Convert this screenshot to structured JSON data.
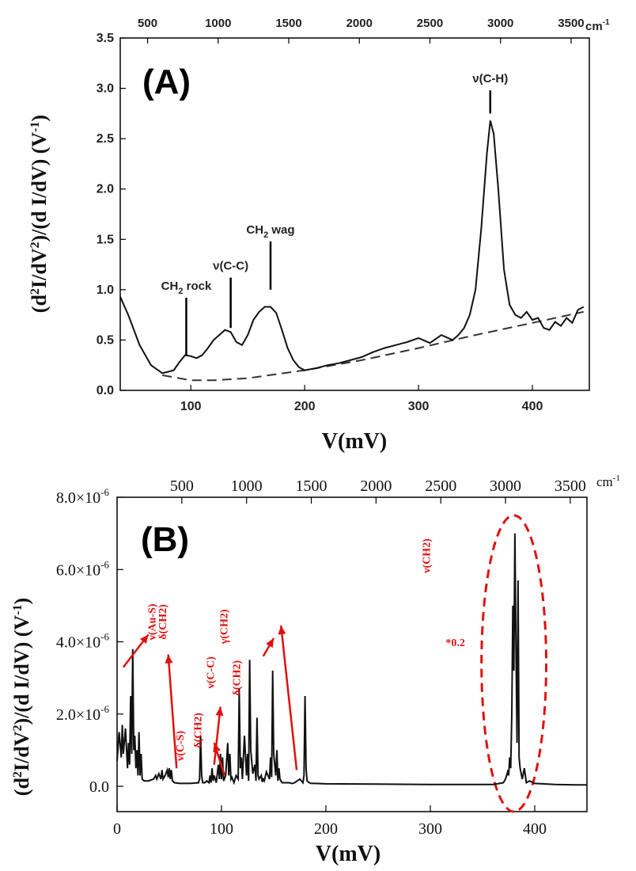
{
  "chart_data": [
    {
      "type": "line",
      "panel_label": "(A)",
      "xlabel": "V(mV)",
      "ylabel": "(d²I/dV²)/(d I/dV) (V⁻¹)",
      "ylabel_parts": {
        "a": "(d",
        "b": "2",
        "c": "I/dV",
        "d": "2",
        "e": ")/(d I/dV) (V",
        "f": "-1",
        "g": ")"
      },
      "xlim": [
        38,
        450
      ],
      "ylim": [
        0,
        3.5
      ],
      "x_ticks": [
        "100",
        "200",
        "300",
        "400"
      ],
      "x_tick_values": [
        100,
        200,
        300,
        400
      ],
      "y_ticks": [
        "0.0",
        "0.5",
        "1.0",
        "1.5",
        "2.0",
        "2.5",
        "3.0",
        "3.5"
      ],
      "y_tick_values": [
        0,
        0.5,
        1.0,
        1.5,
        2.0,
        2.5,
        3.0,
        3.5
      ],
      "top_axis_ticks": [
        "500",
        "1000",
        "1500",
        "2000",
        "2500",
        "3000",
        "3500"
      ],
      "top_axis_values": [
        500,
        1000,
        1500,
        2000,
        2500,
        3000,
        3500
      ],
      "top_axis_unit": "cm",
      "top_axis_unit_exp": "-1",
      "series": [
        {
          "name": "spectrum",
          "style": "solid",
          "x": [
            38,
            45,
            55,
            65,
            75,
            85,
            90,
            95,
            100,
            105,
            110,
            115,
            120,
            125,
            130,
            135,
            140,
            145,
            150,
            155,
            160,
            165,
            170,
            175,
            180,
            185,
            190,
            195,
            200,
            210,
            220,
            230,
            240,
            250,
            260,
            270,
            280,
            290,
            300,
            310,
            320,
            330,
            335,
            340,
            345,
            350,
            355,
            360,
            363,
            366,
            370,
            375,
            380,
            385,
            390,
            395,
            400,
            405,
            410,
            415,
            420,
            425,
            430,
            435,
            440,
            445
          ],
          "y": [
            0.93,
            0.75,
            0.45,
            0.25,
            0.17,
            0.2,
            0.28,
            0.35,
            0.34,
            0.32,
            0.35,
            0.42,
            0.5,
            0.55,
            0.6,
            0.58,
            0.48,
            0.45,
            0.55,
            0.7,
            0.78,
            0.83,
            0.83,
            0.77,
            0.6,
            0.42,
            0.3,
            0.23,
            0.2,
            0.22,
            0.25,
            0.27,
            0.3,
            0.33,
            0.38,
            0.42,
            0.45,
            0.48,
            0.52,
            0.47,
            0.55,
            0.5,
            0.55,
            0.62,
            0.75,
            1.0,
            1.6,
            2.35,
            2.68,
            2.55,
            2.0,
            1.2,
            0.85,
            0.75,
            0.72,
            0.78,
            0.7,
            0.72,
            0.62,
            0.6,
            0.68,
            0.64,
            0.72,
            0.67,
            0.8,
            0.83
          ]
        },
        {
          "name": "background",
          "style": "dashed",
          "x": [
            75,
            90,
            100,
            120,
            150,
            200,
            250,
            300,
            350,
            400,
            445
          ],
          "y": [
            0.15,
            0.12,
            0.1,
            0.1,
            0.12,
            0.2,
            0.3,
            0.42,
            0.55,
            0.67,
            0.78
          ]
        }
      ],
      "annotations": [
        {
          "x": 96,
          "y_from": 0.35,
          "y_to": 0.92,
          "main": "CH",
          "sub": "2",
          "rest": " rock"
        },
        {
          "x": 135,
          "y_from": 0.62,
          "y_to": 1.12,
          "main": "ν(C-C)",
          "sub": "",
          "rest": ""
        },
        {
          "x": 170,
          "y_from": 1.0,
          "y_to": 1.48,
          "main": "CH",
          "sub": "2",
          "rest": " wag"
        },
        {
          "x": 363,
          "y_from": 2.75,
          "y_to": 2.98,
          "main": "ν(C-H)",
          "sub": "",
          "rest": ""
        }
      ]
    },
    {
      "type": "line",
      "panel_label": "(B)",
      "xlabel": "V(mV)",
      "ylabel": "(d²I/dV²)/(d I/dV) (V⁻¹)",
      "ylabel_parts": {
        "a": "(d",
        "b": "2",
        "c": "I/dV",
        "d": "2",
        "e": ")/(d I/dV) (V",
        "f": "-1",
        "g": ")"
      },
      "xlim": [
        0,
        450
      ],
      "ylim": [
        -0.7,
        8.0
      ],
      "x_ticks": [
        "0",
        "100",
        "200",
        "300",
        "400"
      ],
      "x_tick_values": [
        0,
        100,
        200,
        300,
        400
      ],
      "y_ticks": [
        {
          "mant": "0.0",
          "exp": ""
        },
        {
          "mant": "2.0×10",
          "exp": "-6"
        },
        {
          "mant": "4.0×10",
          "exp": "-6"
        },
        {
          "mant": "6.0×10",
          "exp": "-6"
        },
        {
          "mant": "8.0×10",
          "exp": "-6"
        }
      ],
      "y_tick_values": [
        0,
        2,
        4,
        6,
        8
      ],
      "y_unit_note": "×10^-6",
      "top_axis_ticks": [
        "500",
        "1000",
        "1500",
        "2000",
        "2500",
        "3000",
        "3500"
      ],
      "top_axis_values": [
        500,
        1000,
        1500,
        2000,
        2500,
        3000,
        3500
      ],
      "top_axis_unit": "cm",
      "top_axis_unit_exp": "-1",
      "series": [
        {
          "name": "computed spectrum",
          "style": "solid",
          "x": [
            0,
            2,
            4,
            5,
            6,
            8,
            10,
            11,
            12,
            13,
            14,
            15,
            16,
            17,
            18,
            19,
            20,
            21,
            22,
            23,
            24,
            26,
            30,
            35,
            37,
            38,
            40,
            42,
            43,
            44,
            46,
            48,
            49,
            50,
            51,
            52,
            53,
            55,
            60,
            70,
            78,
            79,
            80,
            81,
            82,
            84,
            86,
            88,
            89,
            90,
            91,
            92,
            93,
            95,
            97,
            98,
            99,
            100,
            101,
            102,
            104,
            106,
            107,
            108,
            109,
            110,
            112,
            114,
            116,
            117,
            118,
            119,
            120,
            122,
            124,
            125,
            126,
            127,
            128,
            130,
            132,
            133,
            134,
            135,
            136,
            138,
            139,
            140,
            141,
            143,
            146,
            147,
            148,
            149,
            150,
            152,
            153,
            154,
            155,
            156,
            157,
            158,
            160,
            162,
            163,
            165,
            167,
            168,
            170,
            175,
            178,
            179,
            180,
            181,
            182,
            184,
            186,
            190,
            200,
            250,
            300,
            350,
            360,
            370,
            372,
            374,
            375,
            376,
            377,
            378,
            379,
            380,
            381,
            382,
            383,
            384,
            385,
            386,
            388,
            390,
            392,
            395,
            400,
            420,
            440,
            450
          ],
          "y": [
            0.7,
            1.5,
            0.8,
            1.7,
            0.9,
            1.6,
            0.5,
            1.2,
            0.6,
            2.5,
            0.9,
            3.8,
            1.0,
            1.4,
            0.5,
            1.0,
            0.3,
            1.5,
            0.3,
            0.9,
            0.2,
            0.15,
            0.15,
            0.2,
            0.3,
            0.2,
            0.35,
            0.2,
            0.45,
            0.2,
            0.3,
            0.45,
            0.25,
            0.5,
            0.2,
            0.45,
            0.15,
            0.1,
            0.08,
            0.08,
            0.1,
            0.2,
            1.4,
            0.3,
            0.1,
            0.1,
            0.15,
            0.1,
            0.3,
            0.1,
            0.5,
            0.15,
            0.3,
            0.1,
            0.6,
            0.2,
            0.9,
            0.2,
            0.8,
            0.15,
            0.3,
            1.2,
            0.3,
            0.9,
            0.2,
            0.25,
            0.1,
            0.3,
            0.2,
            2.7,
            0.5,
            0.8,
            0.2,
            1.4,
            0.3,
            0.9,
            0.15,
            3.5,
            1.0,
            0.35,
            0.6,
            0.15,
            1.9,
            0.3,
            0.2,
            0.3,
            0.12,
            0.2,
            0.15,
            0.4,
            0.2,
            0.8,
            0.25,
            3.2,
            0.9,
            0.3,
            1.0,
            0.15,
            0.5,
            0.2,
            0.15,
            0.1,
            0.1,
            0.1,
            0.1,
            0.1,
            0.08,
            0.08,
            0.1,
            0.2,
            0.1,
            0.3,
            2.5,
            0.5,
            0.15,
            0.1,
            0.08,
            0.08,
            0.07,
            0.06,
            0.05,
            0.05,
            0.05,
            0.1,
            0.2,
            0.4,
            0.3,
            0.8,
            0.5,
            2.0,
            5.0,
            3.2,
            7.0,
            4.0,
            1.2,
            5.7,
            0.8,
            0.5,
            0.2,
            0.5,
            0.1,
            0.15,
            0.08,
            0.05,
            0.04,
            0.04
          ]
        }
      ],
      "annotations": [
        {
          "text": "ν(Au-S)",
          "rot": -90,
          "tx": 33,
          "ty": 4.55
        },
        {
          "text": "δ(CH2)",
          "rot": -90,
          "tx": 43,
          "ty": 4.55
        },
        {
          "text": "ν(C-S)",
          "rot": -90,
          "tx": 60,
          "ty": 1.12
        },
        {
          "text": "δ(CH2)",
          "rot": -90,
          "tx": 77,
          "ty": 1.55
        },
        {
          "text": "ν(C-C)",
          "rot": -90,
          "tx": 89,
          "ty": 3.15
        },
        {
          "text": "γ(CH2)",
          "rot": -90,
          "tx": 102,
          "ty": 4.42
        },
        {
          "text": "δ(CH2)",
          "rot": -90,
          "tx": 114,
          "ty": 3.0
        },
        {
          "text": "ν(CH2)",
          "rot": -90,
          "tx": 296,
          "ty": 6.38
        },
        {
          "text": "*0.2",
          "rot": 0,
          "tx": 324,
          "ty": 3.88
        }
      ],
      "arrows": [
        {
          "x1": 6,
          "y1": 3.3,
          "x2": 30,
          "y2": 4.2
        },
        {
          "x1": 57,
          "y1": 0.5,
          "x2": 49,
          "y2": 3.65
        },
        {
          "x1": 93,
          "y1": 0.6,
          "x2": 99,
          "y2": 2.2
        },
        {
          "x1": 103,
          "y1": 0.3,
          "x2": 93,
          "y2": 1.2
        },
        {
          "x1": 140,
          "y1": 3.6,
          "x2": 150,
          "y2": 4.1
        },
        {
          "x1": 172,
          "y1": 0.45,
          "x2": 157,
          "y2": 4.45
        }
      ],
      "ellipse": {
        "cx": 380,
        "cy": 3.4,
        "rx": 31,
        "ry": 4.1,
        "color": "#e01010"
      }
    }
  ]
}
